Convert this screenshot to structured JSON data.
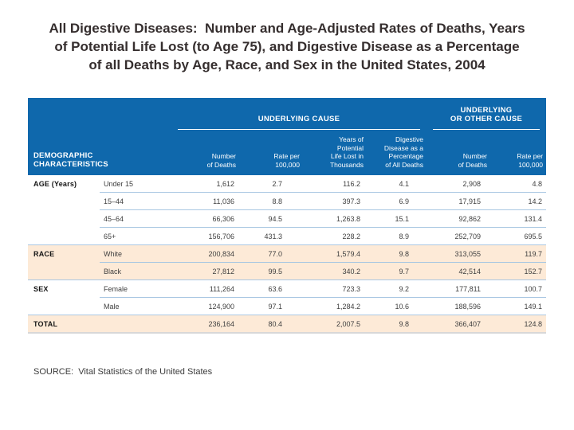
{
  "colors": {
    "header_blue": "#0f68ac",
    "shaded_row_peach": "#fdead7",
    "separator_blue": "#a9c7e2",
    "title_text": "#352e2e"
  },
  "title": {
    "lines": [
      "All Digestive Diseases:  Number and Age-Adjusted Rates of Deaths, Years",
      "of Potential Life Lost (to Age 75), and Digestive Disease as a Percentage",
      "of all Deaths by Age, Race, and Sex in the United States, 2004"
    ]
  },
  "table": {
    "group_underlying_cause": "UNDERLYING CAUSE",
    "group_underlying_or_other_line1": "UNDERLYING",
    "group_underlying_or_other_line2": "OR OTHER CAUSE",
    "demographic_line1": "DEMOGRAPHIC",
    "demographic_line2": "CHARACTERISTICS",
    "columns": [
      {
        "label": "Number of Deaths",
        "lines": [
          "Number",
          "of Deaths"
        ]
      },
      {
        "label": "Rate per 100,000",
        "lines": [
          "Rate per",
          "100,000"
        ]
      },
      {
        "label": "Years of Potential Life Lost in Thousands",
        "lines": [
          "Years of",
          "Potential",
          "Life Lost in",
          "Thousands"
        ]
      },
      {
        "label": "Digestive Disease as a Percentage of All Deaths",
        "lines": [
          "Digestive",
          "Disease as a",
          "Percentage",
          "of All Deaths"
        ]
      },
      {
        "label": "Number of Deaths",
        "lines": [
          "Number",
          "of Deaths"
        ]
      },
      {
        "label": "Rate per 100,000",
        "lines": [
          "Rate per",
          "100,000"
        ]
      }
    ],
    "rows": [
      {
        "section": "AGE (Years)",
        "category": "Under 15",
        "values": [
          "1,612",
          "2.7",
          "116.2",
          "4.1",
          "2,908",
          "4.8"
        ],
        "shaded": false,
        "rule_below": "partial"
      },
      {
        "section": "",
        "category": "15–44",
        "values": [
          "11,036",
          "8.8",
          "397.3",
          "6.9",
          "17,915",
          "14.2"
        ],
        "shaded": false,
        "rule_below": "partial"
      },
      {
        "section": "",
        "category": "45–64",
        "values": [
          "66,306",
          "94.5",
          "1,263.8",
          "15.1",
          "92,862",
          "131.4"
        ],
        "shaded": false,
        "rule_below": "partial"
      },
      {
        "section": "",
        "category": "65+",
        "values": [
          "156,706",
          "431.3",
          "228.2",
          "8.9",
          "252,709",
          "695.5"
        ],
        "shaded": false,
        "rule_below": "full"
      },
      {
        "section": "RACE",
        "category": "White",
        "values": [
          "200,834",
          "77.0",
          "1,579.4",
          "9.8",
          "313,055",
          "119.7"
        ],
        "shaded": true,
        "rule_below": "partial"
      },
      {
        "section": "",
        "category": "Black",
        "values": [
          "27,812",
          "99.5",
          "340.2",
          "9.7",
          "42,514",
          "152.7"
        ],
        "shaded": true,
        "rule_below": "full"
      },
      {
        "section": "SEX",
        "category": "Female",
        "values": [
          "111,264",
          "63.6",
          "723.3",
          "9.2",
          "177,811",
          "100.7"
        ],
        "shaded": false,
        "rule_below": "partial"
      },
      {
        "section": "",
        "category": "Male",
        "values": [
          "124,900",
          "97.1",
          "1,284.2",
          "10.6",
          "188,596",
          "149.1"
        ],
        "shaded": false,
        "rule_below": "full"
      },
      {
        "section": "TOTAL",
        "category": "",
        "values": [
          "236,164",
          "80.4",
          "2,007.5",
          "9.8",
          "366,407",
          "124.8"
        ],
        "shaded": true,
        "rule_below": "none"
      }
    ]
  },
  "source": "SOURCE:  Vital Statistics of the United States"
}
